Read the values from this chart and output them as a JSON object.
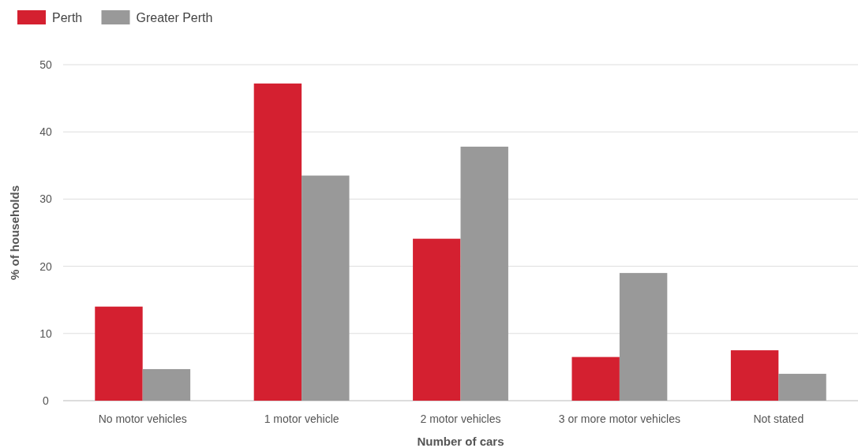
{
  "chart_data": {
    "type": "bar",
    "xlabel": "Number of cars",
    "ylabel": "% of households",
    "categories": [
      "No motor vehicles",
      "1 motor vehicle",
      "2 motor vehicles",
      "3 or more motor vehicles",
      "Not stated"
    ],
    "series": [
      {
        "name": "Perth",
        "color": "#d42030",
        "values": [
          14.0,
          47.2,
          24.1,
          6.5,
          7.5
        ]
      },
      {
        "name": "Greater Perth",
        "color": "#999999",
        "values": [
          4.7,
          33.5,
          37.8,
          19.0,
          4.0
        ]
      }
    ],
    "ylim": [
      0,
      50
    ],
    "yticks": [
      0,
      10,
      20,
      30,
      40,
      50
    ],
    "grid": "y",
    "legend": "top left"
  }
}
